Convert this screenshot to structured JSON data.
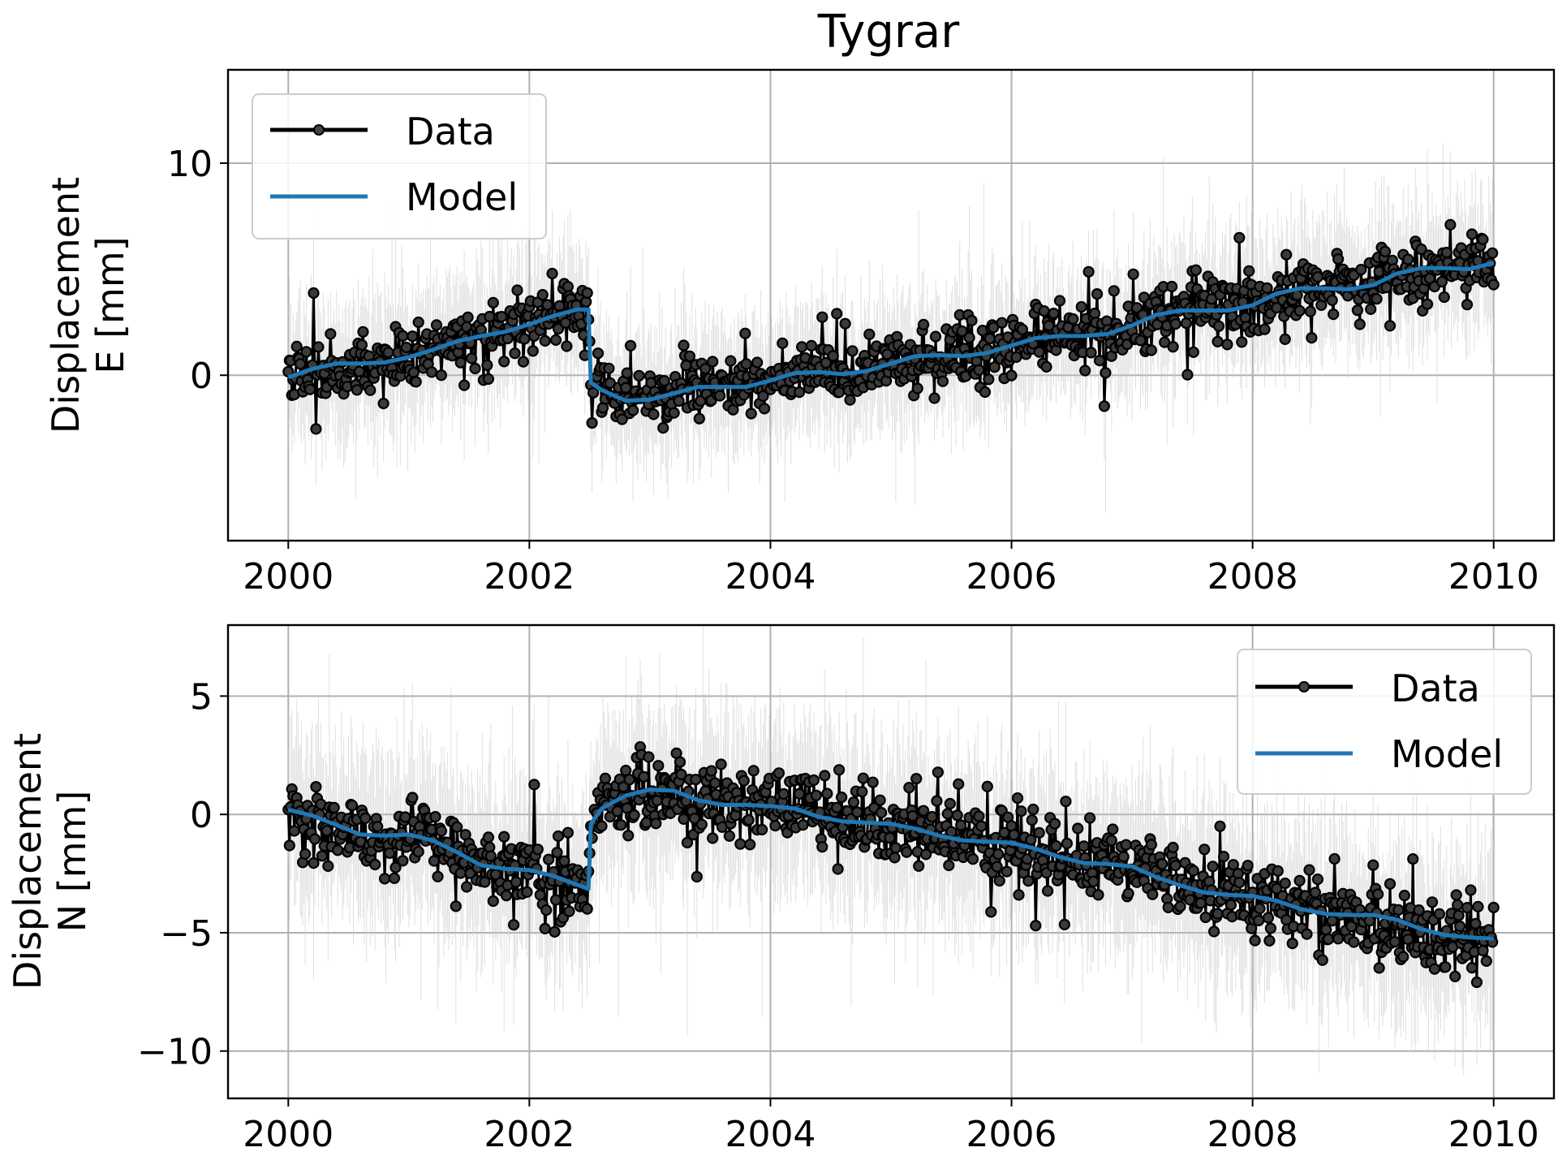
{
  "figure": {
    "title": "Tygrar"
  },
  "chart_data": [
    {
      "type": "line",
      "title": "",
      "xlabel": "",
      "ylabel": "Displacement\nE [mm]",
      "ylabel_lines": [
        "Displacement",
        "E [mm]"
      ],
      "xlim": [
        1999.5,
        2010.5
      ],
      "ylim": [
        -7.8,
        14.4
      ],
      "x_ticks": [
        2000,
        2002,
        2004,
        2006,
        2008,
        2010
      ],
      "x_tick_labels": [
        "2000",
        "2002",
        "2004",
        "2006",
        "2008",
        "2010"
      ],
      "y_ticks": [
        10,
        0
      ],
      "y_tick_labels": [
        "10",
        "0"
      ],
      "grid": true,
      "legend": {
        "placement": "top-left",
        "entries": [
          "Data",
          "Model"
        ]
      },
      "series": [
        {
          "name": "Data",
          "color": "#000000",
          "marker": "circle",
          "x_range": [
            2000.0,
            2010.0
          ],
          "points_per_year": 100,
          "noise_sd": 0.75,
          "uncertainty_band_sd": 1.9,
          "uncertainty_color": "#c7c7c7"
        },
        {
          "name": "Model",
          "color": "#1f77b4",
          "x": [
            2000.0,
            2000.2,
            2000.4,
            2000.6,
            2000.8,
            2001.0,
            2001.2,
            2001.4,
            2001.6,
            2001.8,
            2002.0,
            2002.2,
            2002.4,
            2002.49,
            2002.51,
            2002.6,
            2002.8,
            2003.0,
            2003.2,
            2003.4,
            2003.6,
            2003.8,
            2004.0,
            2004.2,
            2004.4,
            2004.6,
            2004.8,
            2005.0,
            2005.2,
            2005.4,
            2005.6,
            2005.8,
            2006.0,
            2006.2,
            2006.4,
            2006.6,
            2006.8,
            2007.0,
            2007.2,
            2007.4,
            2007.6,
            2007.8,
            2008.0,
            2008.2,
            2008.4,
            2008.6,
            2008.8,
            2009.0,
            2009.2,
            2009.4,
            2009.6,
            2009.8,
            2010.0
          ],
          "y": [
            -0.1,
            0.3,
            0.55,
            0.55,
            0.6,
            0.85,
            1.2,
            1.6,
            1.85,
            2.05,
            2.4,
            2.8,
            3.1,
            3.1,
            -0.35,
            -0.7,
            -1.2,
            -1.15,
            -0.85,
            -0.55,
            -0.55,
            -0.55,
            -0.25,
            0.1,
            0.15,
            0.05,
            0.2,
            0.55,
            0.9,
            0.95,
            0.9,
            1.05,
            1.4,
            1.75,
            1.85,
            1.85,
            1.95,
            2.35,
            2.85,
            3.05,
            3.05,
            3.05,
            3.3,
            3.85,
            4.1,
            4.1,
            4.05,
            4.25,
            4.8,
            5.05,
            5.05,
            5.0,
            5.3
          ]
        }
      ]
    },
    {
      "type": "line",
      "title": "",
      "xlabel": "",
      "ylabel": "Displacement\nN [mm]",
      "ylabel_lines": [
        "Displacement",
        "N [mm]"
      ],
      "xlim": [
        1999.5,
        2010.5
      ],
      "ylim": [
        -12.0,
        8.0
      ],
      "x_ticks": [
        2000,
        2002,
        2004,
        2006,
        2008,
        2010
      ],
      "x_tick_labels": [
        "2000",
        "2002",
        "2004",
        "2006",
        "2008",
        "2010"
      ],
      "y_ticks": [
        5,
        0,
        -5,
        -10
      ],
      "y_tick_labels": [
        "5",
        "0",
        "−5",
        "−10"
      ],
      "grid": true,
      "legend": {
        "placement": "top-right",
        "entries": [
          "Data",
          "Model"
        ]
      },
      "series": [
        {
          "name": "Data",
          "color": "#000000",
          "marker": "circle",
          "x_range": [
            2000.0,
            2010.0
          ],
          "points_per_year": 100,
          "noise_sd": 0.8,
          "uncertainty_band_sd": 2.2,
          "uncertainty_color": "#c7c7c7"
        },
        {
          "name": "Model",
          "color": "#1f77b4",
          "x": [
            2000.0,
            2000.2,
            2000.4,
            2000.6,
            2000.8,
            2001.0,
            2001.2,
            2001.4,
            2001.6,
            2001.8,
            2002.0,
            2002.2,
            2002.49,
            2002.51,
            2002.6,
            2002.8,
            2003.0,
            2003.2,
            2003.4,
            2003.6,
            2003.8,
            2004.0,
            2004.2,
            2004.4,
            2004.6,
            2004.8,
            2005.0,
            2005.2,
            2005.4,
            2005.6,
            2005.8,
            2006.0,
            2006.2,
            2006.4,
            2006.6,
            2006.8,
            2007.0,
            2007.2,
            2007.4,
            2007.6,
            2007.8,
            2008.0,
            2008.2,
            2008.4,
            2008.6,
            2008.8,
            2009.0,
            2009.2,
            2009.4,
            2009.6,
            2009.8,
            2010.0
          ],
          "y": [
            0.2,
            -0.05,
            -0.45,
            -0.85,
            -0.9,
            -0.85,
            -1.1,
            -1.6,
            -2.15,
            -2.3,
            -2.35,
            -2.6,
            -3.15,
            -0.4,
            0.25,
            0.8,
            1.05,
            1.0,
            0.6,
            0.4,
            0.4,
            0.35,
            0.25,
            -0.1,
            -0.3,
            -0.35,
            -0.4,
            -0.6,
            -0.9,
            -1.1,
            -1.15,
            -1.2,
            -1.45,
            -1.8,
            -2.05,
            -2.1,
            -2.2,
            -2.65,
            -3.0,
            -3.3,
            -3.4,
            -3.45,
            -3.65,
            -4.0,
            -4.2,
            -4.25,
            -4.25,
            -4.45,
            -4.85,
            -5.1,
            -5.2,
            -5.25
          ]
        }
      ]
    }
  ]
}
